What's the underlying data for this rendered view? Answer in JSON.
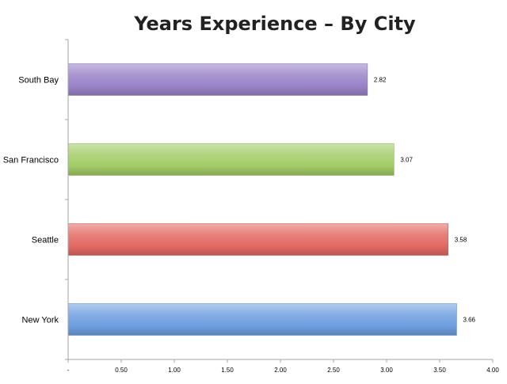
{
  "chart_data": {
    "type": "bar",
    "orientation": "horizontal",
    "title": "Years Experience – By City",
    "xlabel": "",
    "ylabel": "",
    "xlim": [
      0,
      4
    ],
    "x_ticks": [
      "-",
      "0.50",
      "1.00",
      "1.50",
      "2.00",
      "2.50",
      "3.00",
      "3.50",
      "4.00"
    ],
    "x_tick_values": [
      0,
      0.5,
      1.0,
      1.5,
      2.0,
      2.5,
      3.0,
      3.5,
      4.0
    ],
    "categories": [
      "South Bay",
      "San Francisco",
      "Seattle",
      "New York"
    ],
    "values": [
      2.82,
      3.07,
      3.58,
      3.66
    ],
    "data_labels": [
      "2.82",
      "3.07",
      "3.58",
      "3.66"
    ],
    "colors": [
      "#9a84c8",
      "#a3cc68",
      "#e36a64",
      "#6f9fe0"
    ],
    "grid": false,
    "legend": "none"
  }
}
